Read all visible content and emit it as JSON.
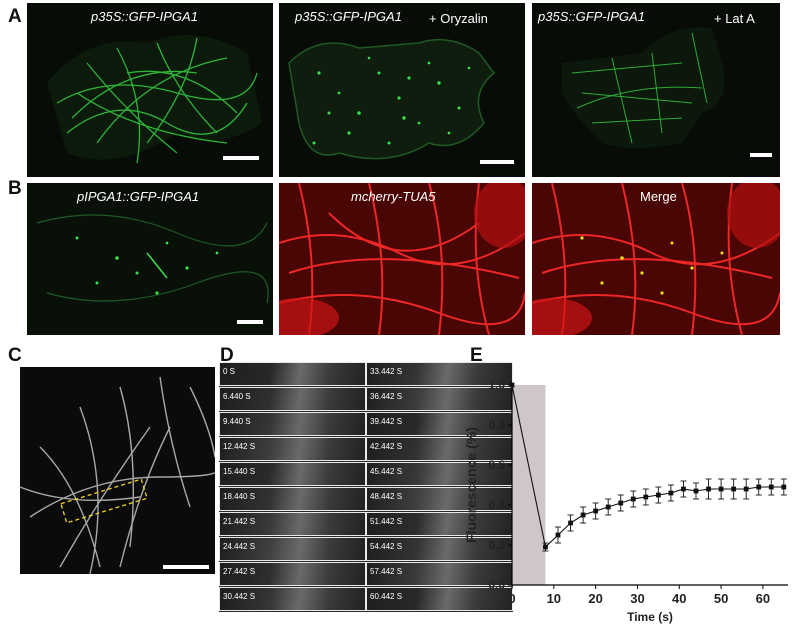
{
  "figure": {
    "panel_labels": [
      "A",
      "B",
      "C",
      "D",
      "E"
    ],
    "panelA": [
      {
        "title": "p35S::GFP-IPGA1",
        "treatment": ""
      },
      {
        "title": "p35S::GFP-IPGA1",
        "treatment": "+ Oryzalin"
      },
      {
        "title": "p35S::GFP-IPGA1",
        "treatment": "+ Lat A"
      }
    ],
    "panelB": [
      {
        "title": "pIPGA1::GFP-IPGA1",
        "color": "#2fbf3a"
      },
      {
        "title": "mcherry-TUA5",
        "color": "#e01818"
      },
      {
        "title": "Merge",
        "color": "#e6d020"
      }
    ],
    "panelD_times": [
      [
        "0 S",
        "33.442 S"
      ],
      [
        "6.440 S",
        "36.442 S"
      ],
      [
        "9.440 S",
        "39.442 S"
      ],
      [
        "12.442 S",
        "42.442 S"
      ],
      [
        "15.440 S",
        "45.442 S"
      ],
      [
        "18.440 S",
        "48.442 S"
      ],
      [
        "21.442 S",
        "51.442 S"
      ],
      [
        "24.442 S",
        "54.442 S"
      ],
      [
        "27.442 S",
        "57.442 S"
      ],
      [
        "30.442 S",
        "60.442 S"
      ]
    ],
    "colors": {
      "gfp": "#33d23f",
      "mcherry": "#e51616",
      "roi_box": "#f2d21b",
      "bleach_shade": "#cfc6cc"
    }
  },
  "chart_data": {
    "type": "line",
    "title": "",
    "xlabel": "Time (s)",
    "ylabel": "Fluorescence (%)",
    "xlim": [
      0,
      66
    ],
    "ylim": [
      0,
      1.0
    ],
    "xticks": [
      "0",
      "10",
      "20",
      "30",
      "40",
      "50",
      "60"
    ],
    "yticks": [
      "0.0",
      "0.2",
      "0.4",
      "0.6",
      "0.8",
      "1.0"
    ],
    "bleach_interval": [
      0,
      8
    ],
    "series": [
      {
        "x": [
          0,
          8,
          11,
          14,
          17,
          20,
          23,
          26,
          29,
          32,
          35,
          38,
          41,
          44,
          47,
          50,
          53,
          56,
          59,
          62,
          65
        ],
        "y": [
          1.0,
          0.19,
          0.25,
          0.31,
          0.35,
          0.37,
          0.39,
          0.41,
          0.43,
          0.44,
          0.45,
          0.46,
          0.48,
          0.47,
          0.48,
          0.48,
          0.48,
          0.48,
          0.49,
          0.49,
          0.49
        ],
        "err": [
          0,
          0.02,
          0.04,
          0.04,
          0.04,
          0.04,
          0.04,
          0.04,
          0.04,
          0.04,
          0.04,
          0.04,
          0.04,
          0.04,
          0.05,
          0.05,
          0.05,
          0.05,
          0.04,
          0.04,
          0.04
        ]
      }
    ]
  }
}
